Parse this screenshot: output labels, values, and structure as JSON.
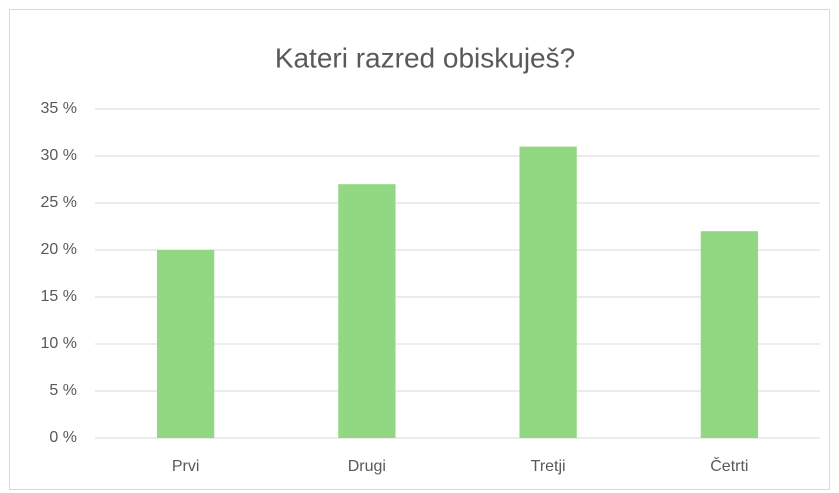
{
  "chart_data": {
    "type": "bar",
    "title": "Kateri razred obiskuješ?",
    "categories": [
      "Prvi",
      "Drugi",
      "Tretji",
      "Četrti"
    ],
    "values": [
      20,
      27,
      31,
      22
    ],
    "color": "#92d882",
    "ylim": [
      0,
      35
    ],
    "yticks": [
      {
        "value": 0,
        "label": "0 %"
      },
      {
        "value": 5,
        "label": "5 %"
      },
      {
        "value": 10,
        "label": "10 %"
      },
      {
        "value": 15,
        "label": "15 %"
      },
      {
        "value": 20,
        "label": "20 %"
      },
      {
        "value": 25,
        "label": "25 %"
      },
      {
        "value": 30,
        "label": "30 %"
      },
      {
        "value": 35,
        "label": "35 %"
      }
    ],
    "grid": true
  }
}
